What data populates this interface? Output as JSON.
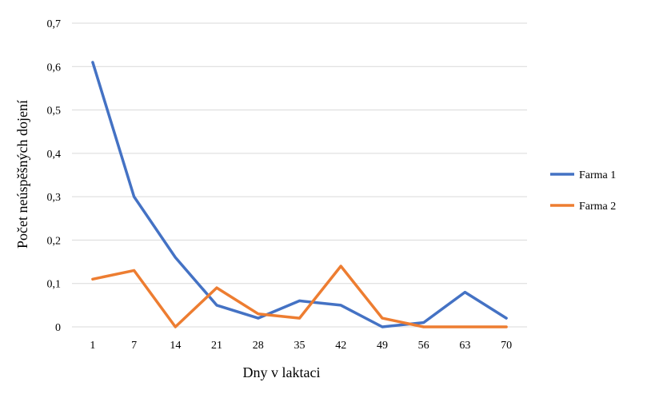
{
  "chart_data": {
    "type": "line",
    "title": "",
    "xlabel": "Dny v laktaci",
    "ylabel": "Počet neúspěšných dojení",
    "categories": [
      "1",
      "7",
      "14",
      "21",
      "28",
      "35",
      "42",
      "49",
      "56",
      "63",
      "70"
    ],
    "ylim": [
      0,
      0.7
    ],
    "yticks": [
      "0",
      "0,1",
      "0,2",
      "0,3",
      "0,4",
      "0,5",
      "0,6",
      "0,7"
    ],
    "grid": "horizontal",
    "legend_position": "right",
    "series": [
      {
        "name": "Farma 1",
        "color": "#4472C4",
        "values": [
          0.61,
          0.3,
          0.16,
          0.05,
          0.02,
          0.06,
          0.05,
          0.0,
          0.01,
          0.08,
          0.02
        ]
      },
      {
        "name": "Farma 2",
        "color": "#ED7D31",
        "values": [
          0.11,
          0.13,
          0.0,
          0.09,
          0.03,
          0.02,
          0.14,
          0.02,
          0.0,
          0.0,
          0.0
        ]
      }
    ]
  }
}
